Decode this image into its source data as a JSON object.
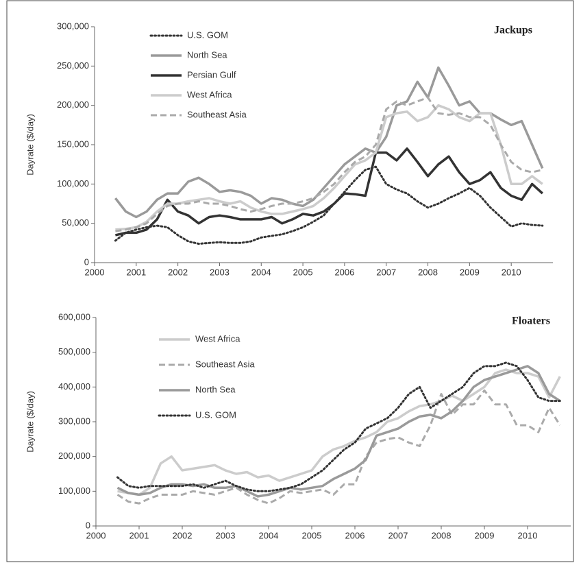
{
  "chart_data": [
    {
      "type": "line",
      "title": "Jackups",
      "y_label": "Dayrate ($/day)",
      "legend": "upper left",
      "xlim": [
        2000,
        2011
      ],
      "xticks": [
        2000,
        2001,
        2002,
        2003,
        2004,
        2005,
        2006,
        2007,
        2008,
        2009,
        2010
      ],
      "ylim": [
        0,
        300000
      ],
      "yticks": [
        0,
        {
          "value": 50000,
          "label": "50,000"
        },
        {
          "value": 100000,
          "label": "100,000"
        },
        {
          "value": 150000,
          "label": "150,000"
        },
        {
          "value": 200000,
          "label": "200,000"
        },
        {
          "value": 250000,
          "label": "250,000"
        },
        {
          "value": 300000,
          "label": "300,000"
        }
      ],
      "x": [
        2000.5,
        2000.75,
        2001,
        2001.25,
        2001.5,
        2001.75,
        2002,
        2002.25,
        2002.5,
        2002.75,
        2003,
        2003.25,
        2003.5,
        2003.75,
        2004,
        2004.25,
        2004.5,
        2004.75,
        2005,
        2005.25,
        2005.5,
        2005.75,
        2006,
        2006.25,
        2006.5,
        2006.75,
        2007,
        2007.25,
        2007.5,
        2007.75,
        2008,
        2008.25,
        2008.5,
        2008.75,
        2009,
        2009.25,
        2009.5,
        2009.75,
        2010,
        2010.25,
        2010.5,
        2010.75
      ],
      "series": [
        {
          "name": "U.S. GOM",
          "color": "#333333",
          "dash": "dotted",
          "values": [
            28000,
            38000,
            42000,
            45000,
            47000,
            45000,
            35000,
            27000,
            24000,
            25000,
            26000,
            25000,
            25000,
            27000,
            32000,
            34000,
            36000,
            40000,
            45000,
            52000,
            60000,
            75000,
            90000,
            105000,
            118000,
            122000,
            100000,
            93000,
            88000,
            78000,
            70000,
            75000,
            82000,
            88000,
            95000,
            85000,
            70000,
            58000,
            46000,
            50000,
            48000,
            47000
          ]
        },
        {
          "name": "North Sea",
          "color": "#9a9a9a",
          "dash": "solid",
          "values": [
            82000,
            65000,
            58000,
            65000,
            80000,
            88000,
            88000,
            103000,
            108000,
            100000,
            90000,
            92000,
            90000,
            85000,
            75000,
            82000,
            80000,
            75000,
            72000,
            80000,
            95000,
            110000,
            125000,
            135000,
            145000,
            140000,
            160000,
            200000,
            205000,
            230000,
            210000,
            248000,
            225000,
            200000,
            205000,
            190000,
            190000,
            182000,
            175000,
            180000,
            150000,
            120000
          ]
        },
        {
          "name": "Persian Gulf",
          "color": "#333333",
          "dash": "solid",
          "values": [
            35000,
            38000,
            38000,
            42000,
            55000,
            80000,
            65000,
            60000,
            50000,
            58000,
            60000,
            58000,
            55000,
            55000,
            55000,
            58000,
            50000,
            55000,
            62000,
            60000,
            65000,
            75000,
            88000,
            87000,
            85000,
            140000,
            140000,
            130000,
            145000,
            128000,
            110000,
            125000,
            135000,
            115000,
            100000,
            105000,
            115000,
            95000,
            85000,
            80000,
            100000,
            88000
          ]
        },
        {
          "name": "West Africa",
          "color": "#cccccc",
          "dash": "solid",
          "values": [
            42000,
            43000,
            45000,
            52000,
            65000,
            75000,
            75000,
            78000,
            80000,
            82000,
            78000,
            75000,
            78000,
            70000,
            65000,
            62000,
            62000,
            65000,
            68000,
            72000,
            82000,
            95000,
            110000,
            125000,
            130000,
            140000,
            185000,
            190000,
            192000,
            180000,
            185000,
            200000,
            195000,
            185000,
            180000,
            190000,
            190000,
            150000,
            100000,
            100000,
            110000,
            100000
          ]
        },
        {
          "name": "Southeast Asia",
          "color": "#aaaaaa",
          "dash": "dashed",
          "values": [
            40000,
            42000,
            45000,
            50000,
            62000,
            72000,
            75000,
            75000,
            78000,
            75000,
            75000,
            72000,
            68000,
            65000,
            68000,
            72000,
            75000,
            75000,
            78000,
            82000,
            90000,
            100000,
            115000,
            128000,
            135000,
            150000,
            195000,
            205000,
            200000,
            205000,
            210000,
            190000,
            188000,
            190000,
            185000,
            185000,
            175000,
            150000,
            128000,
            118000,
            115000,
            118000
          ]
        }
      ]
    },
    {
      "type": "line",
      "title": "Floaters",
      "y_label": "Dayrate ($/day)",
      "legend": "upper left",
      "xlim": [
        2000,
        2011
      ],
      "xticks": [
        2000,
        2001,
        2002,
        2003,
        2004,
        2005,
        2006,
        2007,
        2008,
        2009,
        2010
      ],
      "ylim": [
        0,
        600000
      ],
      "yticks": [
        0,
        {
          "value": 100000,
          "label": "100,000"
        },
        {
          "value": 200000,
          "label": "200,000"
        },
        {
          "value": 300000,
          "label": "300,000"
        },
        {
          "value": 400000,
          "label": "400,000"
        },
        {
          "value": 500000,
          "label": "500,000"
        },
        {
          "value": 600000,
          "label": "600,000"
        }
      ],
      "x": [
        2000.5,
        2000.75,
        2001,
        2001.25,
        2001.5,
        2001.75,
        2002,
        2002.25,
        2002.5,
        2002.75,
        2003,
        2003.25,
        2003.5,
        2003.75,
        2004,
        2004.25,
        2004.5,
        2004.75,
        2005,
        2005.25,
        2005.5,
        2005.75,
        2006,
        2006.25,
        2006.5,
        2006.75,
        2007,
        2007.25,
        2007.5,
        2007.75,
        2008,
        2008.25,
        2008.5,
        2008.75,
        2009,
        2009.25,
        2009.5,
        2009.75,
        2010,
        2010.25,
        2010.5,
        2010.75
      ],
      "series": [
        {
          "name": "West Africa",
          "color": "#cccccc",
          "dash": "solid",
          "values": [
            100000,
            95000,
            90000,
            110000,
            180000,
            200000,
            160000,
            165000,
            170000,
            175000,
            160000,
            150000,
            155000,
            140000,
            145000,
            130000,
            140000,
            150000,
            160000,
            200000,
            220000,
            230000,
            245000,
            255000,
            270000,
            300000,
            310000,
            330000,
            345000,
            350000,
            360000,
            375000,
            360000,
            380000,
            400000,
            440000,
            450000,
            440000,
            440000,
            430000,
            370000,
            430000
          ]
        },
        {
          "name": "Southeast Asia",
          "color": "#aaaaaa",
          "dash": "dashed",
          "values": [
            90000,
            70000,
            65000,
            80000,
            90000,
            90000,
            90000,
            100000,
            95000,
            90000,
            100000,
            110000,
            90000,
            75000,
            65000,
            80000,
            100000,
            95000,
            100000,
            105000,
            90000,
            120000,
            120000,
            200000,
            240000,
            250000,
            255000,
            240000,
            230000,
            290000,
            380000,
            320000,
            350000,
            350000,
            390000,
            350000,
            350000,
            290000,
            290000,
            270000,
            340000,
            290000
          ]
        },
        {
          "name": "North Sea",
          "color": "#9a9a9a",
          "dash": "solid",
          "values": [
            110000,
            95000,
            90000,
            95000,
            110000,
            120000,
            120000,
            115000,
            120000,
            110000,
            110000,
            115000,
            100000,
            85000,
            90000,
            100000,
            110000,
            105000,
            110000,
            115000,
            135000,
            150000,
            165000,
            190000,
            260000,
            270000,
            280000,
            300000,
            315000,
            320000,
            310000,
            330000,
            360000,
            400000,
            420000,
            430000,
            440000,
            450000,
            460000,
            440000,
            380000,
            360000
          ]
        },
        {
          "name": "U.S. GOM",
          "color": "#333333",
          "dash": "dotted",
          "values": [
            140000,
            115000,
            110000,
            115000,
            115000,
            115000,
            115000,
            120000,
            110000,
            120000,
            130000,
            115000,
            105000,
            100000,
            100000,
            105000,
            110000,
            120000,
            140000,
            160000,
            190000,
            220000,
            240000,
            280000,
            295000,
            310000,
            340000,
            380000,
            400000,
            340000,
            360000,
            380000,
            400000,
            440000,
            460000,
            460000,
            470000,
            460000,
            420000,
            370000,
            360000,
            360000
          ]
        }
      ]
    }
  ]
}
